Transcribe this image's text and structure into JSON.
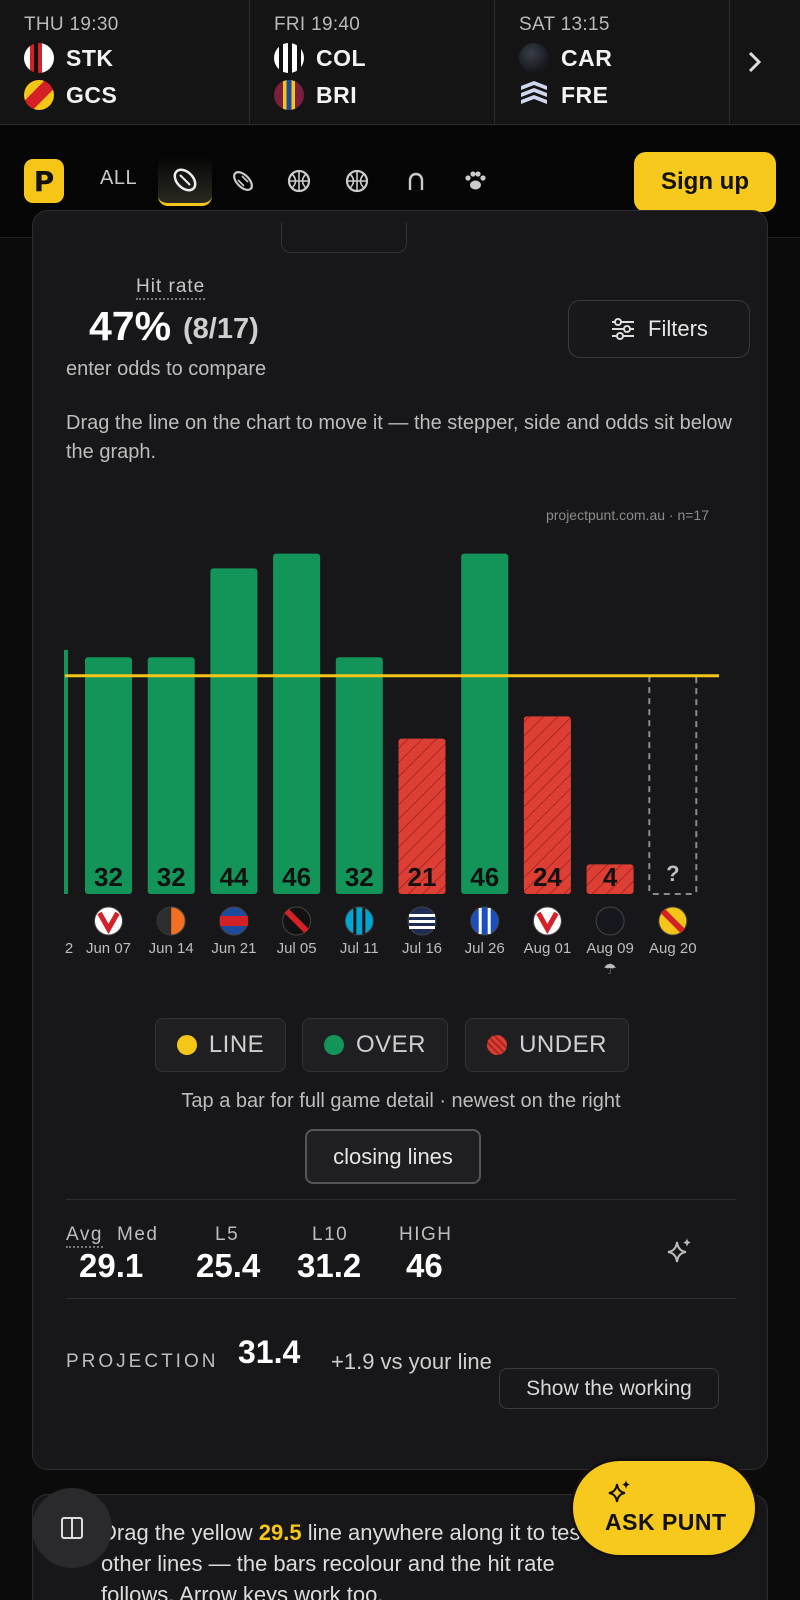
{
  "fixtures": [
    {
      "time": "THU 19:30",
      "home": "STK",
      "away": "GCS"
    },
    {
      "time": "FRI 19:40",
      "home": "COL",
      "away": "BRI"
    },
    {
      "time": "SAT 13:15",
      "home": "CAR",
      "away": "FRE"
    }
  ],
  "nav": {
    "brand": "P",
    "all_label": "ALL",
    "signup_label": "Sign up"
  },
  "summary": {
    "hit_label": "Hit rate",
    "hit_value": "47%",
    "hit_fraction": "(8/17)",
    "hint": "enter odds to compare",
    "filters_label": "Filters",
    "instructions": "Drag the line on the chart to move it — the stepper, side and odds sit below the graph."
  },
  "chart_data": {
    "type": "bar",
    "credit": "projectpunt.com.au · n=17",
    "line": 29.5,
    "ylim": [
      0,
      50
    ],
    "colors": {
      "over": "#13955a",
      "under": "#de3f34",
      "line": "#f5c518"
    },
    "partial_label": "2",
    "partial_value": 33,
    "categories": [
      "Jun 07",
      "Jun 14",
      "Jun 21",
      "Jul 05",
      "Jul 11",
      "Jul 16",
      "Jul 26",
      "Aug 01",
      "Aug 09",
      "Aug 20"
    ],
    "values": [
      32,
      32,
      44,
      46,
      32,
      21,
      46,
      24,
      4,
      null
    ],
    "upcoming_label": "?",
    "weather_mark": "☂"
  },
  "legend": {
    "line": "LINE",
    "over": "OVER",
    "under": "UNDER"
  },
  "tap_note": "Tap a bar for full game detail · newest on the right",
  "closing_label": "closing lines",
  "stats": [
    {
      "label": "Avg",
      "value": "29.1"
    },
    {
      "label": "Med",
      "value": "25.4"
    },
    {
      "label": "L5",
      "value": "31.2"
    },
    {
      "label": "L10",
      "value": "46"
    },
    {
      "label": "HIGH",
      "value": ""
    }
  ],
  "stats_display": {
    "head_avg": "Avg",
    "head_med": "Med",
    "head_l5": "L5",
    "head_l10": "L10",
    "head_high": "HIGH",
    "val_1": "29.1",
    "val_2": "25.4",
    "val_3": "31.2",
    "val_4": "46"
  },
  "projection": {
    "label": "PROJECTION",
    "value": "31.4",
    "diff": "+1.9 vs your line",
    "working_label": "Show the working"
  },
  "tip": {
    "before": "Drag the yellow ",
    "number": "29.5",
    "after": " line anywhere along it to test other lines — the bars recolour and the hit rate follows. Arrow keys work too."
  },
  "ask_label": "ASK PUNT"
}
